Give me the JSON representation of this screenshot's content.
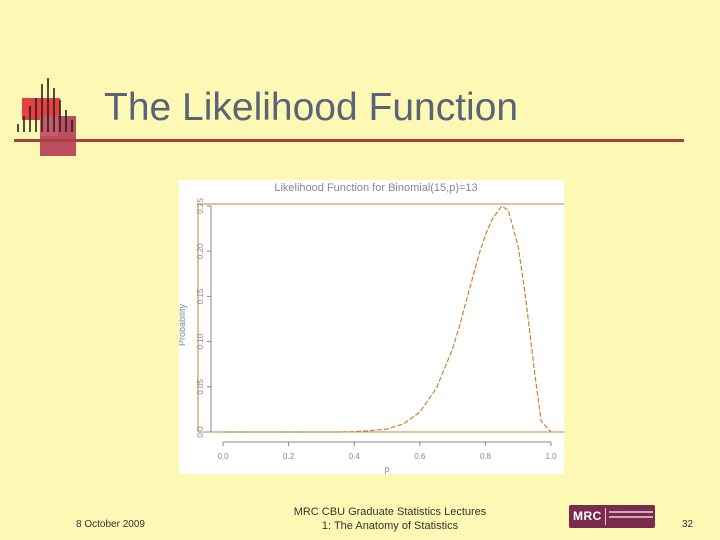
{
  "slide": {
    "title": "The Likelihood Function",
    "colors": {
      "background": "#fdf8b4",
      "title": "#5a6478",
      "rule": "#a84040",
      "curve": "#c8843a"
    }
  },
  "chart_data": {
    "type": "line",
    "title": "Likelihood Function for Binomial(15,p)=13",
    "xlabel": "p",
    "ylabel": "Probability",
    "xlim": [
      0.0,
      1.0
    ],
    "ylim": [
      0.0,
      0.25
    ],
    "x_ticks": [
      "0.0",
      "0.2",
      "0.4",
      "0.6",
      "0.8",
      "1.0"
    ],
    "y_ticks": [
      "0.0",
      "0.05",
      "0.10",
      "0.15",
      "0.20",
      "0.25"
    ],
    "line_style": "dashed",
    "series": [
      {
        "x": [
          0.0,
          0.35,
          0.4,
          0.45,
          0.5,
          0.55,
          0.6,
          0.65,
          0.7,
          0.72,
          0.75,
          0.78,
          0.8,
          0.82,
          0.85,
          0.87,
          0.9,
          0.92,
          0.95,
          0.97,
          1.0
        ],
        "values": [
          0.0,
          0.0,
          0.0003,
          0.0015,
          0.0032,
          0.0089,
          0.022,
          0.048,
          0.092,
          0.116,
          0.156,
          0.196,
          0.218,
          0.235,
          0.25,
          0.245,
          0.205,
          0.156,
          0.066,
          0.012,
          0.0
        ]
      }
    ]
  },
  "footer": {
    "date": "8 October 2009",
    "lecture": "MRC CBU Graduate Statistics Lectures",
    "subtitle": "1: The Anatomy of Statistics",
    "page": "32",
    "logo_text": "MRC"
  }
}
